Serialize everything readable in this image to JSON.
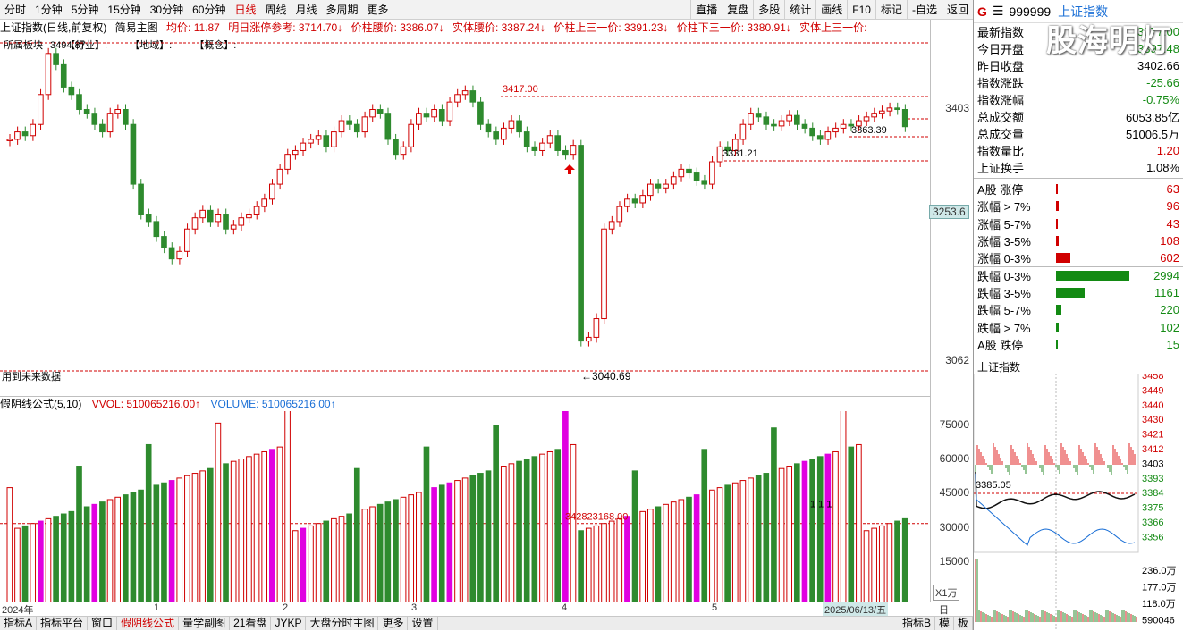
{
  "toolbar": {
    "periods": [
      "分时",
      "1分钟",
      "5分钟",
      "15分钟",
      "30分钟",
      "60分钟",
      "日线",
      "周线",
      "月线",
      "多周期",
      "更多"
    ],
    "active_period": "日线",
    "right_buttons": [
      "直播",
      "复盘",
      "多股",
      "统计",
      "画线",
      "F10",
      "标记",
      "-自选",
      "返回"
    ]
  },
  "info": {
    "title": "上证指数(日线,前复权)",
    "indicator": "简易主图",
    "avg": "均价: 11.87",
    "limit_ref": "明日涨停参考: 3714.70↓",
    "waist": "价柱腰价: 3386.07↓",
    "body_waist": "实体腰价: 3387.24↓",
    "upper3": "价柱上三一价: 3391.23↓",
    "lower3": "价柱下三一价: 3380.91↓",
    "body_upper3": "实体上三一价:"
  },
  "sector": {
    "label": "所属板块",
    "items": [
      "【行业】:",
      "【地域】:",
      "【概念】:"
    ]
  },
  "main_chart": {
    "high_label": "3494.87",
    "peak_label": "3417.00",
    "level_3363": "3363.39",
    "level_3331": "3331.21",
    "low_label": "←3040.69",
    "future_note": "用到未来数据",
    "y_ticks": [
      "3403",
      "3253.6",
      "3062"
    ],
    "current_price_tag": "3253.6"
  },
  "volume": {
    "indicator": "假阴线公式(5,10)",
    "vvol": "VVOL: 510065216.00↑",
    "volume": "VOLUME: 510065216.00↑",
    "ticks": [
      "75000",
      "60000",
      "45000",
      "30000",
      "15000"
    ],
    "unit": "X1万",
    "ref_label": "342823168.00",
    "marks": "1 1 1"
  },
  "x_axis": {
    "labels": [
      "2024年",
      "1",
      "2",
      "3",
      "4",
      "5"
    ],
    "date_tag": "2025/06/13/五",
    "period": "日线"
  },
  "bottom_tabs": [
    "指标A",
    "指标平台",
    "窗口",
    "假阴线公式",
    "量学副图",
    "21看盘",
    "JYKP",
    "大盘分时主图",
    "更多",
    "设置"
  ],
  "bottom_tabs_active": "假阴线公式",
  "bottom_right": [
    "指标B",
    "模",
    "板"
  ],
  "right_panel": {
    "code": "999999",
    "name": "上证指数",
    "flag": "G",
    "stats": [
      {
        "label": "最新指数",
        "value": "3377.00",
        "color": "#138a13"
      },
      {
        "label": "今日开盘",
        "value": "3397.48",
        "color": "#138a13"
      },
      {
        "label": "昨日收盘",
        "value": "3402.66",
        "color": "#000000"
      },
      {
        "label": "指数涨跌",
        "value": "-25.66",
        "color": "#138a13"
      },
      {
        "label": "指数涨幅",
        "value": "-0.75%",
        "color": "#138a13"
      },
      {
        "label": "总成交额",
        "value": "6053.85亿",
        "color": "#000000"
      },
      {
        "label": "总成交量",
        "value": "51006.5万",
        "color": "#000000"
      },
      {
        "label": "指数量比",
        "value": "1.20",
        "color": "#d00000"
      },
      {
        "label": "上证换手",
        "value": "1.08%",
        "color": "#000000"
      }
    ],
    "dist": [
      {
        "label": "A股 涨停",
        "value": "63",
        "color": "#d00000",
        "frac": 0.021
      },
      {
        "label": "涨幅 > 7%",
        "value": "96",
        "color": "#d00000",
        "frac": 0.032
      },
      {
        "label": "涨幅 5-7%",
        "value": "43",
        "color": "#d00000",
        "frac": 0.014
      },
      {
        "label": "涨幅 3-5%",
        "value": "108",
        "color": "#d00000",
        "frac": 0.036
      },
      {
        "label": "涨幅 0-3%",
        "value": "602",
        "color": "#d00000",
        "frac": 0.201
      },
      {
        "label": "跌幅 0-3%",
        "value": "2994",
        "color": "#138a13",
        "frac": 1.0
      },
      {
        "label": "跌幅 3-5%",
        "value": "1161",
        "color": "#138a13",
        "frac": 0.388
      },
      {
        "label": "跌幅 5-7%",
        "value": "220",
        "color": "#138a13",
        "frac": 0.073
      },
      {
        "label": "跌幅 > 7%",
        "value": "102",
        "color": "#138a13",
        "frac": 0.034
      },
      {
        "label": "A股 跌停",
        "value": "15",
        "color": "#138a13",
        "frac": 0.005
      }
    ],
    "mini_title": "上证指数",
    "mini_ticks": [
      "3458",
      "3449",
      "3440",
      "3430",
      "3421",
      "3412",
      "3403",
      "3393",
      "3384",
      "3375",
      "3366",
      "3356"
    ],
    "mini_ref": "3385.05",
    "mini_vol_ticks": [
      "236.0万",
      "177.0万",
      "118.0万",
      "590046"
    ]
  },
  "watermark": "股海明灯"
}
